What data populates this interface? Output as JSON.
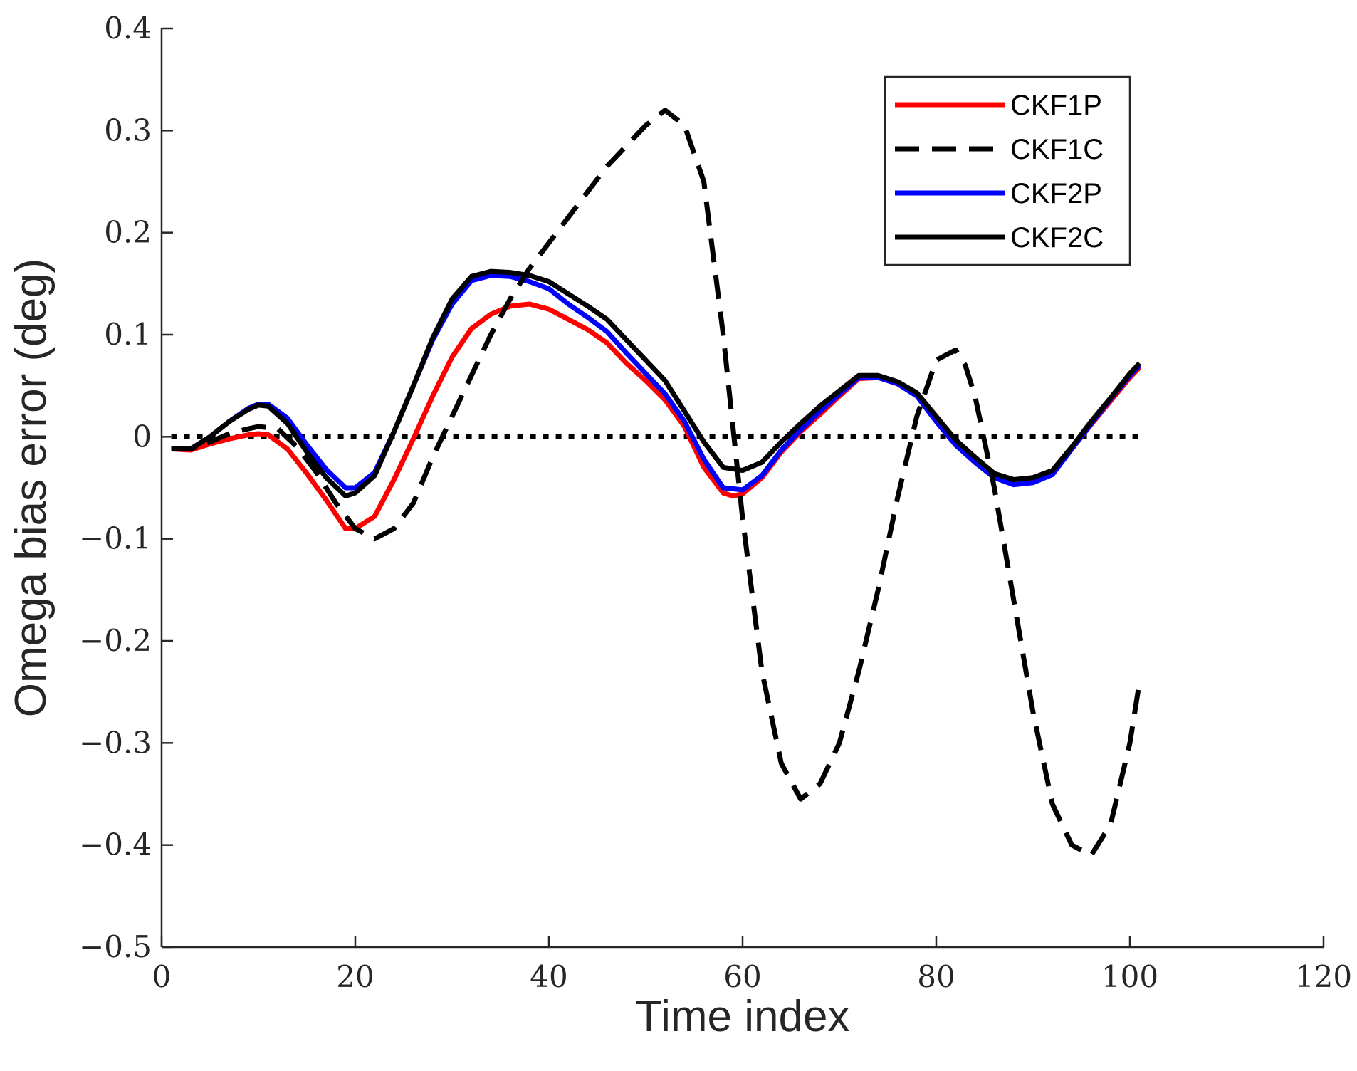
{
  "chart_data": {
    "type": "line",
    "title": "",
    "xlabel": "Time index",
    "ylabel": "Omega bias error (deg)",
    "xlim": [
      0,
      120
    ],
    "ylim": [
      -0.5,
      0.4
    ],
    "xticks": [
      0,
      20,
      40,
      60,
      80,
      100,
      120
    ],
    "xtick_labels": [
      "0",
      "20",
      "40",
      "60",
      "80",
      "100",
      "120"
    ],
    "yticks": [
      0.4,
      0.3,
      0.2,
      0.1,
      0,
      -0.1,
      -0.2,
      -0.3,
      -0.4,
      -0.5
    ],
    "ytick_labels": [
      "0.4",
      "0.3",
      "0.2",
      "0.1",
      "0",
      "−0.1",
      "−0.2",
      "−0.3",
      "−0.4",
      "−0.5"
    ],
    "grid": false,
    "legend_position": "top-right",
    "series": [
      {
        "name": "CKF1P",
        "color": "#ff0000",
        "style": "solid",
        "points": [
          [
            1,
            -0.012
          ],
          [
            3,
            -0.013
          ],
          [
            5,
            -0.007
          ],
          [
            7,
            -0.002
          ],
          [
            9,
            0.002
          ],
          [
            10,
            0.003
          ],
          [
            11,
            0.002
          ],
          [
            13,
            -0.012
          ],
          [
            15,
            -0.036
          ],
          [
            17,
            -0.062
          ],
          [
            19,
            -0.09
          ],
          [
            20,
            -0.09
          ],
          [
            22,
            -0.078
          ],
          [
            24,
            -0.042
          ],
          [
            26,
            -0.002
          ],
          [
            28,
            0.04
          ],
          [
            30,
            0.078
          ],
          [
            32,
            0.106
          ],
          [
            34,
            0.12
          ],
          [
            36,
            0.128
          ],
          [
            38,
            0.13
          ],
          [
            40,
            0.125
          ],
          [
            42,
            0.115
          ],
          [
            44,
            0.105
          ],
          [
            46,
            0.092
          ],
          [
            48,
            0.072
          ],
          [
            50,
            0.055
          ],
          [
            52,
            0.036
          ],
          [
            54,
            0.01
          ],
          [
            56,
            -0.03
          ],
          [
            58,
            -0.055
          ],
          [
            59,
            -0.058
          ],
          [
            60,
            -0.056
          ],
          [
            62,
            -0.04
          ],
          [
            64,
            -0.015
          ],
          [
            66,
            0.005
          ],
          [
            68,
            0.022
          ],
          [
            70,
            0.04
          ],
          [
            72,
            0.057
          ],
          [
            74,
            0.058
          ],
          [
            76,
            0.052
          ],
          [
            78,
            0.04
          ],
          [
            80,
            0.015
          ],
          [
            82,
            -0.008
          ],
          [
            84,
            -0.025
          ],
          [
            86,
            -0.04
          ],
          [
            88,
            -0.045
          ],
          [
            90,
            -0.042
          ],
          [
            92,
            -0.035
          ],
          [
            94,
            -0.012
          ],
          [
            96,
            0.012
          ],
          [
            98,
            0.035
          ],
          [
            100,
            0.058
          ],
          [
            101,
            0.068
          ]
        ]
      },
      {
        "name": "CKF1C",
        "color": "#000000",
        "style": "dashed",
        "points": [
          [
            1,
            -0.012
          ],
          [
            3,
            -0.012
          ],
          [
            5,
            -0.005
          ],
          [
            7,
            0.003
          ],
          [
            9,
            0.008
          ],
          [
            10,
            0.01
          ],
          [
            12,
            0.008
          ],
          [
            14,
            -0.01
          ],
          [
            16,
            -0.035
          ],
          [
            18,
            -0.065
          ],
          [
            20,
            -0.09
          ],
          [
            22,
            -0.1
          ],
          [
            24,
            -0.09
          ],
          [
            26,
            -0.065
          ],
          [
            28,
            -0.02
          ],
          [
            30,
            0.02
          ],
          [
            32,
            0.06
          ],
          [
            34,
            0.1
          ],
          [
            36,
            0.135
          ],
          [
            38,
            0.165
          ],
          [
            40,
            0.19
          ],
          [
            42,
            0.215
          ],
          [
            44,
            0.24
          ],
          [
            46,
            0.265
          ],
          [
            48,
            0.285
          ],
          [
            50,
            0.305
          ],
          [
            52,
            0.32
          ],
          [
            54,
            0.305
          ],
          [
            56,
            0.25
          ],
          [
            58,
            0.1
          ],
          [
            60,
            -0.08
          ],
          [
            62,
            -0.23
          ],
          [
            64,
            -0.32
          ],
          [
            66,
            -0.355
          ],
          [
            68,
            -0.34
          ],
          [
            70,
            -0.3
          ],
          [
            72,
            -0.23
          ],
          [
            74,
            -0.15
          ],
          [
            76,
            -0.06
          ],
          [
            78,
            0.02
          ],
          [
            80,
            0.075
          ],
          [
            82,
            0.085
          ],
          [
            83,
            0.07
          ],
          [
            84,
            0.04
          ],
          [
            86,
            -0.05
          ],
          [
            88,
            -0.16
          ],
          [
            90,
            -0.27
          ],
          [
            92,
            -0.36
          ],
          [
            94,
            -0.4
          ],
          [
            96,
            -0.41
          ],
          [
            98,
            -0.38
          ],
          [
            100,
            -0.3
          ],
          [
            101,
            -0.24
          ]
        ]
      },
      {
        "name": "CKF2P",
        "color": "#0000ff",
        "style": "solid",
        "points": [
          [
            1,
            -0.012
          ],
          [
            3,
            -0.012
          ],
          [
            5,
            0.0
          ],
          [
            7,
            0.015
          ],
          [
            9,
            0.028
          ],
          [
            10,
            0.032
          ],
          [
            11,
            0.032
          ],
          [
            13,
            0.018
          ],
          [
            15,
            -0.008
          ],
          [
            17,
            -0.032
          ],
          [
            19,
            -0.05
          ],
          [
            20,
            -0.05
          ],
          [
            22,
            -0.035
          ],
          [
            24,
            0.005
          ],
          [
            26,
            0.05
          ],
          [
            28,
            0.095
          ],
          [
            30,
            0.13
          ],
          [
            32,
            0.153
          ],
          [
            34,
            0.158
          ],
          [
            36,
            0.157
          ],
          [
            38,
            0.152
          ],
          [
            40,
            0.145
          ],
          [
            42,
            0.13
          ],
          [
            44,
            0.117
          ],
          [
            46,
            0.103
          ],
          [
            48,
            0.082
          ],
          [
            50,
            0.062
          ],
          [
            52,
            0.042
          ],
          [
            54,
            0.015
          ],
          [
            56,
            -0.022
          ],
          [
            58,
            -0.05
          ],
          [
            60,
            -0.052
          ],
          [
            62,
            -0.038
          ],
          [
            64,
            -0.013
          ],
          [
            66,
            0.007
          ],
          [
            68,
            0.025
          ],
          [
            70,
            0.042
          ],
          [
            72,
            0.058
          ],
          [
            74,
            0.058
          ],
          [
            76,
            0.052
          ],
          [
            78,
            0.04
          ],
          [
            80,
            0.015
          ],
          [
            82,
            -0.008
          ],
          [
            84,
            -0.025
          ],
          [
            86,
            -0.04
          ],
          [
            88,
            -0.047
          ],
          [
            90,
            -0.045
          ],
          [
            92,
            -0.037
          ],
          [
            94,
            -0.012
          ],
          [
            96,
            0.013
          ],
          [
            98,
            0.037
          ],
          [
            100,
            0.06
          ],
          [
            101,
            0.07
          ]
        ]
      },
      {
        "name": "CKF2C",
        "color": "#000000",
        "style": "solid",
        "points": [
          [
            1,
            -0.012
          ],
          [
            3,
            -0.012
          ],
          [
            5,
            0.0
          ],
          [
            7,
            0.015
          ],
          [
            9,
            0.027
          ],
          [
            10,
            0.031
          ],
          [
            11,
            0.03
          ],
          [
            13,
            0.013
          ],
          [
            15,
            -0.015
          ],
          [
            17,
            -0.04
          ],
          [
            19,
            -0.058
          ],
          [
            20,
            -0.055
          ],
          [
            22,
            -0.038
          ],
          [
            24,
            0.005
          ],
          [
            26,
            0.05
          ],
          [
            28,
            0.097
          ],
          [
            30,
            0.135
          ],
          [
            32,
            0.157
          ],
          [
            34,
            0.162
          ],
          [
            36,
            0.161
          ],
          [
            38,
            0.158
          ],
          [
            40,
            0.152
          ],
          [
            42,
            0.14
          ],
          [
            44,
            0.128
          ],
          [
            46,
            0.115
          ],
          [
            48,
            0.095
          ],
          [
            50,
            0.075
          ],
          [
            52,
            0.055
          ],
          [
            54,
            0.025
          ],
          [
            56,
            -0.005
          ],
          [
            58,
            -0.03
          ],
          [
            60,
            -0.033
          ],
          [
            62,
            -0.025
          ],
          [
            64,
            -0.005
          ],
          [
            66,
            0.013
          ],
          [
            68,
            0.03
          ],
          [
            70,
            0.045
          ],
          [
            72,
            0.06
          ],
          [
            74,
            0.06
          ],
          [
            76,
            0.054
          ],
          [
            78,
            0.043
          ],
          [
            80,
            0.02
          ],
          [
            82,
            -0.003
          ],
          [
            84,
            -0.02
          ],
          [
            86,
            -0.036
          ],
          [
            88,
            -0.042
          ],
          [
            90,
            -0.04
          ],
          [
            92,
            -0.033
          ],
          [
            94,
            -0.01
          ],
          [
            96,
            0.015
          ],
          [
            98,
            0.038
          ],
          [
            100,
            0.062
          ],
          [
            101,
            0.072
          ]
        ]
      },
      {
        "name": "zero reference",
        "color": "#000000",
        "style": "dotted",
        "in_legend": false,
        "points": [
          [
            1,
            0
          ],
          [
            101,
            0
          ]
        ]
      }
    ]
  }
}
